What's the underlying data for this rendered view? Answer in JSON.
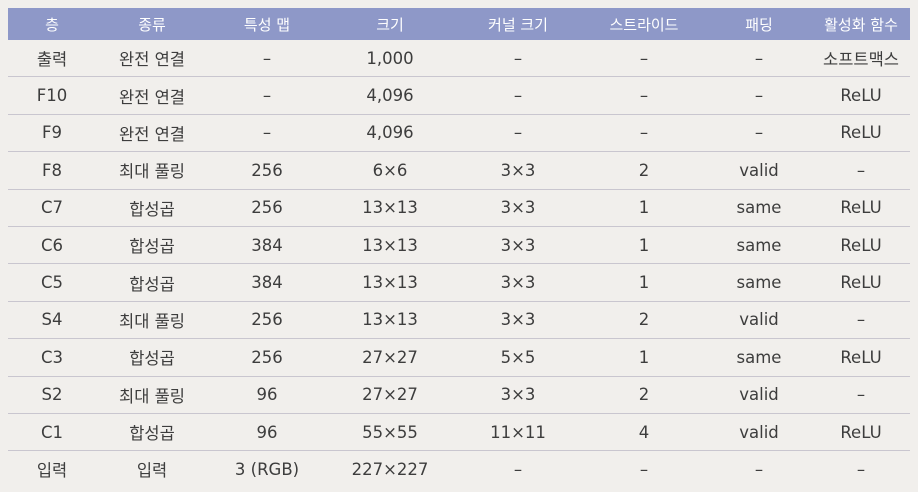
{
  "table": {
    "headers": [
      "층",
      "종류",
      "특성 맵",
      "크기",
      "커널 크기",
      "스트라이드",
      "패딩",
      "활성화 함수"
    ],
    "rows": [
      [
        "출력",
        "완전 연결",
        "–",
        "1,000",
        "–",
        "–",
        "–",
        "소프트맥스"
      ],
      [
        "F10",
        "완전 연결",
        "–",
        "4,096",
        "–",
        "–",
        "–",
        "ReLU"
      ],
      [
        "F9",
        "완전 연결",
        "–",
        "4,096",
        "–",
        "–",
        "–",
        "ReLU"
      ],
      [
        "F8",
        "최대 풀링",
        "256",
        "6×6",
        "3×3",
        "2",
        "valid",
        "–"
      ],
      [
        "C7",
        "합성곱",
        "256",
        "13×13",
        "3×3",
        "1",
        "same",
        "ReLU"
      ],
      [
        "C6",
        "합성곱",
        "384",
        "13×13",
        "3×3",
        "1",
        "same",
        "ReLU"
      ],
      [
        "C5",
        "합성곱",
        "384",
        "13×13",
        "3×3",
        "1",
        "same",
        "ReLU"
      ],
      [
        "S4",
        "최대 풀링",
        "256",
        "13×13",
        "3×3",
        "2",
        "valid",
        "–"
      ],
      [
        "C3",
        "합성곱",
        "256",
        "27×27",
        "5×5",
        "1",
        "same",
        "ReLU"
      ],
      [
        "S2",
        "최대 풀링",
        "96",
        "27×27",
        "3×3",
        "2",
        "valid",
        "–"
      ],
      [
        "C1",
        "합성곱",
        "96",
        "55×55",
        "11×11",
        "4",
        "valid",
        "ReLU"
      ],
      [
        "입력",
        "입력",
        "3 (RGB)",
        "227×227",
        "–",
        "–",
        "–",
        "–"
      ]
    ]
  },
  "colors": {
    "header_bg": "#8e98c8",
    "header_text": "#ffffff",
    "page_bg": "#f1efec",
    "row_rule": "#c9c6cf"
  }
}
